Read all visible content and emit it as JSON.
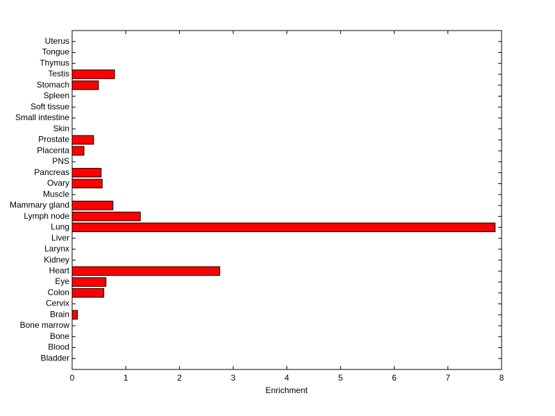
{
  "chart_data": {
    "type": "barh",
    "xlabel": "Enrichment",
    "categories": [
      "Bladder",
      "Blood",
      "Bone",
      "Bone marrow",
      "Brain",
      "Cervix",
      "Colon",
      "Eye",
      "Heart",
      "Kidney",
      "Larynx",
      "Liver",
      "Lung",
      "Lymph node",
      "Mammary gland",
      "Muscle",
      "Ovary",
      "Pancreas",
      "PNS",
      "Placenta",
      "Prostate",
      "Skin",
      "Small intestine",
      "Soft tissue",
      "Spleen",
      "Stomach",
      "Testis",
      "Thymus",
      "Tongue",
      "Uterus"
    ],
    "values": [
      0,
      0,
      0,
      0,
      0.1,
      0,
      0.59,
      0.63,
      2.75,
      0,
      0,
      0,
      7.88,
      1.27,
      0.76,
      0,
      0.56,
      0.54,
      0,
      0.22,
      0.4,
      0,
      0,
      0,
      0,
      0.49,
      0.79,
      0,
      0,
      0
    ],
    "color": "#ff0000",
    "xlim": [
      0,
      8
    ],
    "xticks": [
      0,
      1,
      2,
      3,
      4,
      5,
      6,
      7,
      8
    ]
  }
}
